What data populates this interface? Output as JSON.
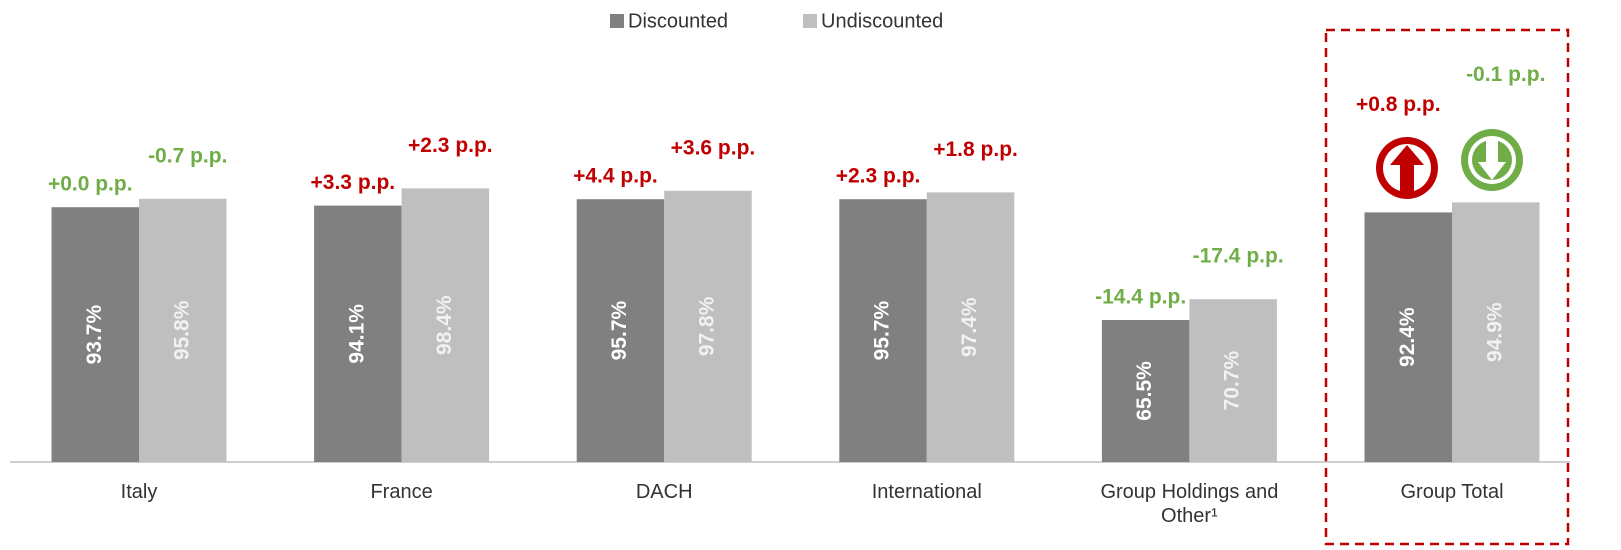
{
  "chart_data": {
    "type": "bar",
    "categories": [
      "Italy",
      "France",
      "DACH",
      "International",
      "Group Holdings and Other¹",
      "Group Total"
    ],
    "series": [
      {
        "name": "Discounted",
        "color": "#808080",
        "values": [
          93.7,
          94.1,
          95.7,
          95.7,
          65.5,
          92.4
        ],
        "value_labels": [
          "93.7%",
          "94.1%",
          "95.7%",
          "95.7%",
          "65.5%",
          "92.4%"
        ],
        "changes": [
          "+0.0 p.p.",
          "+3.3 p.p.",
          "+4.4 p.p.",
          "+2.3 p.p.",
          "-14.4 p.p.",
          "+0.8 p.p."
        ],
        "change_colors": [
          "#70ad47",
          "#c00000",
          "#c00000",
          "#c00000",
          "#70ad47",
          "#c00000"
        ]
      },
      {
        "name": "Undiscounted",
        "color": "#bfbfbf",
        "values": [
          95.8,
          98.4,
          97.8,
          97.4,
          70.7,
          94.9
        ],
        "value_labels": [
          "95.8%",
          "98.4%",
          "97.8%",
          "97.4%",
          "70.7%",
          "94.9%"
        ],
        "changes": [
          "-0.7 p.p.",
          "+2.3 p.p.",
          "+3.6 p.p.",
          "+1.8 p.p.",
          "-17.4 p.p.",
          "-0.1 p.p."
        ],
        "change_colors": [
          "#70ad47",
          "#c00000",
          "#c00000",
          "#c00000",
          "#70ad47",
          "#70ad47"
        ]
      }
    ],
    "ylim": [
      30,
      130
    ],
    "legend": "top"
  }
}
